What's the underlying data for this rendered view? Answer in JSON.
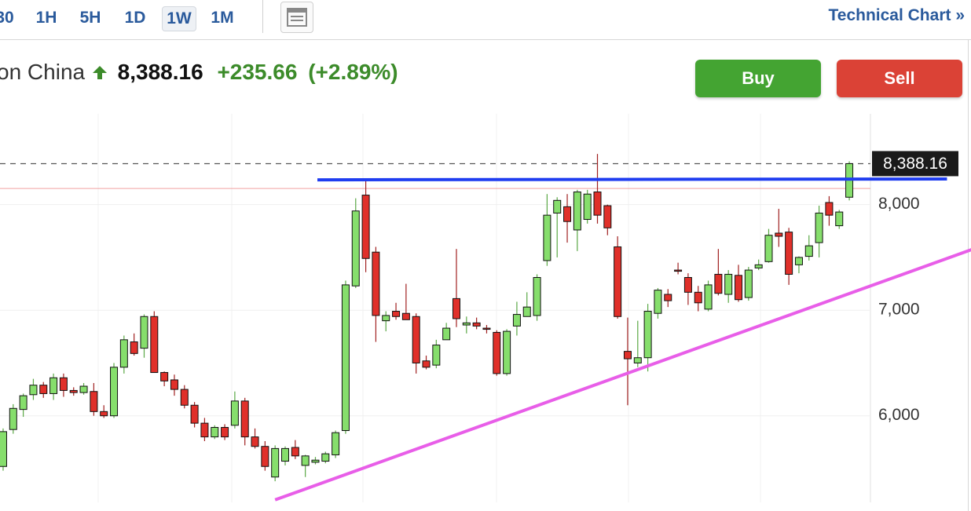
{
  "toolbar": {
    "tabs": [
      "30",
      "1H",
      "5H",
      "1D",
      "1W",
      "1M"
    ],
    "link": "Technical Chart »"
  },
  "quote": {
    "name": "on China",
    "price": "8,388.16",
    "change": "+235.66",
    "change_pct": "(+2.89%)"
  },
  "buttons": [
    "Buy",
    "Sell"
  ],
  "chart_data": {
    "type": "candlestick",
    "up_color": "#86de6c",
    "down_color": "#e0302a",
    "open": [
      5520,
      5870,
      6060,
      6200,
      6290,
      6210,
      6360,
      6240,
      6220,
      6230,
      6040,
      6000,
      6460,
      6700,
      6640,
      6940,
      6410,
      6340,
      6250,
      6100,
      5930,
      5800,
      5890,
      5910,
      6140,
      5800,
      5710,
      5420,
      5570,
      5700,
      5530,
      5560,
      5570,
      5630,
      5860,
      7230,
      8090,
      7550,
      6900,
      6990,
      6970,
      6940,
      6520,
      6480,
      6720,
      7110,
      6860,
      6880,
      6830,
      6790,
      6400,
      6850,
      6940,
      6950,
      7470,
      7920,
      7980,
      7760,
      7860,
      8120,
      7990,
      7600,
      6610,
      6500,
      6550,
      6970,
      7150,
      7380,
      7310,
      7170,
      7010,
      7340,
      7150,
      7330,
      7120,
      7400,
      7460,
      7730,
      7740,
      7430,
      7510,
      7640,
      8020,
      7800,
      8070
    ],
    "high": [
      5880,
      6110,
      6210,
      6350,
      6320,
      6400,
      6400,
      6270,
      6310,
      6310,
      6100,
      6500,
      6760,
      6780,
      6960,
      6990,
      6420,
      6390,
      6290,
      6130,
      5980,
      5910,
      5920,
      6230,
      6170,
      5880,
      5760,
      5720,
      5710,
      5770,
      5630,
      5610,
      5660,
      5860,
      7280,
      8060,
      8250,
      7600,
      6990,
      7070,
      7250,
      6970,
      6570,
      6720,
      6880,
      7580,
      6940,
      6930,
      6860,
      6810,
      6820,
      7080,
      7170,
      7340,
      8100,
      8070,
      8100,
      8140,
      8140,
      8480,
      8000,
      7700,
      6930,
      6900,
      7060,
      7210,
      7200,
      7450,
      7350,
      7230,
      7280,
      7580,
      7380,
      7430,
      7410,
      7480,
      7770,
      7960,
      7780,
      7510,
      7710,
      7990,
      8080,
      7950,
      8410
    ],
    "low": [
      5480,
      5830,
      5990,
      6150,
      6170,
      6150,
      6180,
      6190,
      6200,
      6000,
      5980,
      5980,
      6400,
      6570,
      6550,
      6420,
      6280,
      6190,
      6070,
      5890,
      5760,
      5780,
      5770,
      5880,
      5720,
      5690,
      5480,
      5380,
      5530,
      5590,
      5420,
      5540,
      5550,
      5600,
      5830,
      7210,
      7360,
      6700,
      6800,
      6910,
      6920,
      6400,
      6440,
      6450,
      6720,
      6840,
      6780,
      6820,
      6780,
      6380,
      6380,
      6760,
      6960,
      6900,
      7420,
      7500,
      7640,
      7560,
      7820,
      7820,
      7710,
      6920,
      6100,
      6460,
      6420,
      6920,
      7030,
      7340,
      7050,
      6990,
      6990,
      7140,
      7070,
      7080,
      7090,
      7380,
      7450,
      7600,
      7240,
      7350,
      7470,
      7500,
      7800,
      7770,
      8040
    ],
    "close": [
      5850,
      6070,
      6190,
      6290,
      6210,
      6360,
      6240,
      6220,
      6280,
      6040,
      6000,
      6460,
      6720,
      6590,
      6940,
      6410,
      6330,
      6250,
      6100,
      5930,
      5800,
      5890,
      5800,
      6140,
      5800,
      5710,
      5520,
      5690,
      5690,
      5620,
      5620,
      5580,
      5640,
      5840,
      7240,
      7940,
      7490,
      6950,
      6950,
      6940,
      6910,
      6500,
      6460,
      6670,
      6830,
      6920,
      6880,
      6850,
      6820,
      6400,
      6800,
      6960,
      7030,
      7310,
      7900,
      8040,
      7840,
      8120,
      8100,
      7900,
      7780,
      6940,
      6540,
      6550,
      6990,
      7190,
      7090,
      7370,
      7170,
      7070,
      7240,
      7160,
      7340,
      7100,
      7380,
      7430,
      7710,
      7700,
      7340,
      7500,
      7610,
      7920,
      7900,
      7930,
      8388.16
    ],
    "ylim": [
      5180,
      8860
    ],
    "xlim": [
      -0.31,
      86.1
    ],
    "yticks": [
      {
        "value": 6000,
        "label": "6,000"
      },
      {
        "value": 7000,
        "label": "7,000"
      },
      {
        "value": 8000,
        "label": "8,000"
      }
    ],
    "last_price": 8388.16,
    "last_price_label": "8,388.16",
    "reference_line": 8152.5,
    "trendlines": [
      {
        "color": "#1f3df0",
        "x": [
          31.2,
          93.7
        ],
        "values": [
          8235,
          8243
        ]
      },
      {
        "color": "#e85ee8",
        "x": [
          27,
          96.2
        ],
        "values": [
          5204,
          7576
        ]
      }
    ]
  }
}
